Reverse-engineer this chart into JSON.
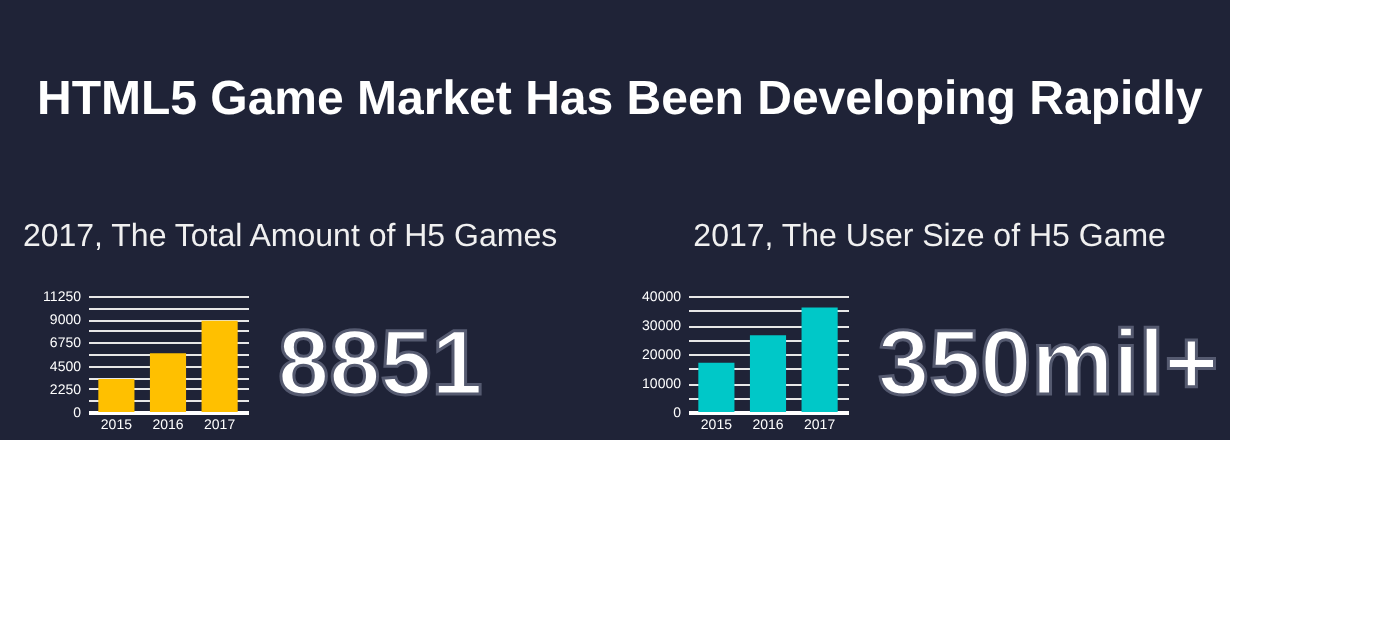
{
  "chart_data": [
    {
      "type": "other",
      "title": "HTML5 Game Market Has Been Developing Rapidly"
    },
    {
      "type": "bar",
      "title": "2017, The Total Amount of H5 Games",
      "categories": [
        "2015",
        "2016",
        "2017"
      ],
      "values": [
        3200,
        5700,
        8851
      ],
      "color": "#ffc000",
      "ylim": [
        0,
        11250
      ],
      "yticks": [
        0,
        {
          "value": 1125,
          "label": null
        },
        2250,
        {
          "value": 3375,
          "label": null
        },
        4500,
        {
          "value": 5625,
          "label": null
        },
        6750,
        {
          "value": 7875,
          "label": null
        },
        9000,
        {
          "value": 10125,
          "label": null
        },
        11250
      ],
      "grid": "y",
      "annotations": [
        "8851"
      ]
    },
    {
      "type": "bar",
      "title": "2017, The User Size of H5 Game",
      "categories": [
        "2015",
        "2016",
        "2017"
      ],
      "values": [
        17000,
        26500,
        36000
      ],
      "color": "#00c8c8",
      "ylim": [
        0,
        40000
      ],
      "yticks": [
        0,
        {
          "value": 5000,
          "label": null
        },
        10000,
        {
          "value": 15000,
          "label": null
        },
        20000,
        {
          "value": 25000,
          "label": null
        },
        30000,
        {
          "value": 35000,
          "label": null
        },
        40000
      ],
      "grid": "y",
      "annotations": [
        "350mil+"
      ]
    }
  ]
}
